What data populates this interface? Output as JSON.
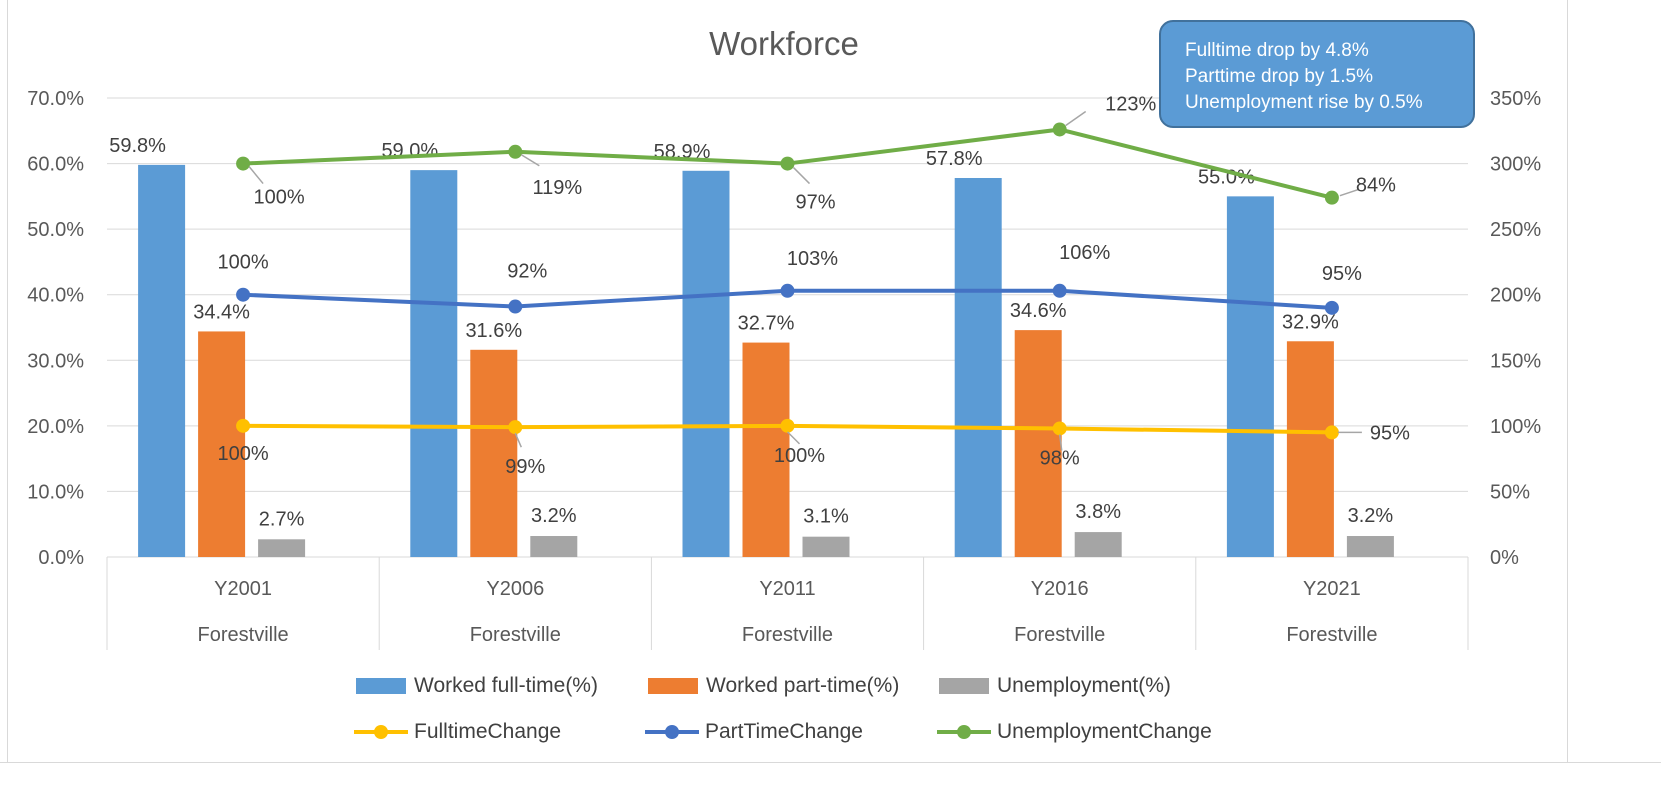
{
  "chart_data": {
    "type": "bar",
    "title": "Workforce",
    "categories": [
      [
        "Y2001",
        "Forestville"
      ],
      [
        "Y2006",
        "Forestville"
      ],
      [
        "Y2011",
        "Forestville"
      ],
      [
        "Y2016",
        "Forestville"
      ],
      [
        "Y2021",
        "Forestville"
      ]
    ],
    "y_left": {
      "min": 0,
      "max": 0.7,
      "step": 0.1,
      "ticks": [
        "0.0%",
        "10.0%",
        "20.0%",
        "30.0%",
        "40.0%",
        "50.0%",
        "60.0%",
        "70.0%"
      ]
    },
    "y_right": {
      "min": 0,
      "max": 3.5,
      "step": 0.5,
      "ticks": [
        "0%",
        "50%",
        "100%",
        "150%",
        "200%",
        "250%",
        "300%",
        "350%"
      ]
    },
    "bar_series": [
      {
        "name": "Worked full-time(%)",
        "color": "#5B9BD5",
        "values": [
          0.598,
          0.59,
          0.589,
          0.578,
          0.55
        ],
        "labels": [
          "59.8%",
          "59.0%",
          "58.9%",
          "57.8%",
          "55.0%"
        ]
      },
      {
        "name": "Worked part-time(%)",
        "color": "#ED7D31",
        "values": [
          0.344,
          0.316,
          0.327,
          0.346,
          0.329
        ],
        "labels": [
          "34.4%",
          "31.6%",
          "32.7%",
          "34.6%",
          "32.9%"
        ]
      },
      {
        "name": "Unemployment(%)",
        "color": "#A5A5A5",
        "values": [
          0.027,
          0.032,
          0.031,
          0.038,
          0.032
        ],
        "labels": [
          "2.7%",
          "3.2%",
          "3.1%",
          "3.8%",
          "3.2%"
        ]
      }
    ],
    "line_series": [
      {
        "name": "FulltimeChange",
        "color": "#FFC000",
        "axis": "right",
        "values": [
          1.0,
          0.99,
          1.0,
          0.98,
          0.95
        ],
        "labels": [
          "100%",
          "99%",
          "100%",
          "98%",
          "95%"
        ]
      },
      {
        "name": "PartTimeChange",
        "color": "#4472C4",
        "axis": "right",
        "values": [
          2.0,
          1.91,
          2.03,
          2.03,
          1.9
        ],
        "labels": [
          "100%",
          "92%",
          "103%",
          "106%",
          "95%"
        ]
      },
      {
        "name": "UnemploymentChange",
        "color": "#70AD47",
        "axis": "right",
        "values": [
          3.0,
          3.09,
          3.0,
          3.26,
          2.74
        ],
        "labels": [
          "100%",
          "119%",
          "97%",
          "123%",
          "84%"
        ]
      }
    ],
    "grid": true,
    "legend_position": "bottom"
  },
  "callout": {
    "lines": [
      "Fulltime drop by 4.8%",
      "Parttime drop by 1.5%",
      "Unemployment rise by 0.5%"
    ]
  },
  "colors": {
    "gridline": "#D9D9D9",
    "axis_text": "#595959",
    "label_text": "#404040",
    "leader": "#A6A6A6",
    "callout_fill": "#5B9BD5",
    "callout_border": "#41719C"
  }
}
